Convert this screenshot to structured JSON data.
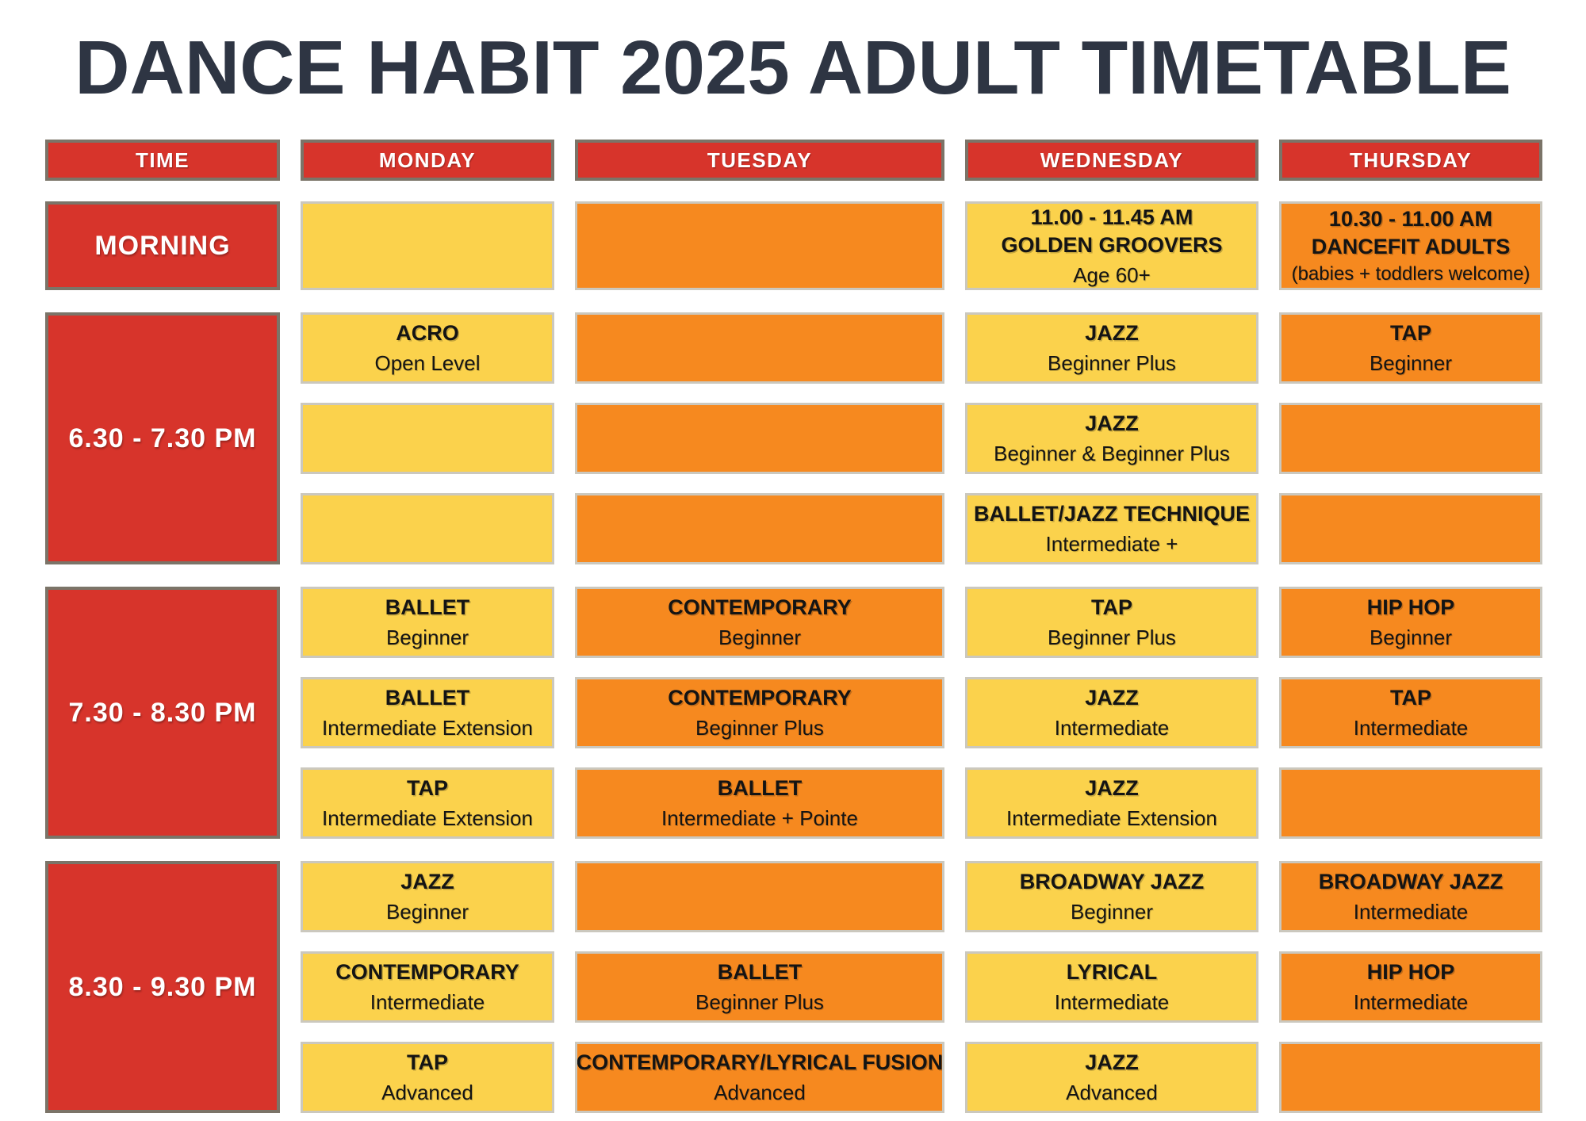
{
  "title": "DANCE HABIT 2025 ADULT TIMETABLE",
  "colors": {
    "red": "#D7342B",
    "red_border": "#7B7468",
    "yellow": "#FBD24C",
    "orange": "#F6891F",
    "cell_border": "#CBC8BE",
    "title_text": "#2E3543",
    "cell_text": "#141414",
    "header_text": "#FFFFFF"
  },
  "timetable": {
    "header": [
      "TIME",
      "MONDAY",
      "TUESDAY",
      "WEDNESDAY",
      "THURSDAY"
    ],
    "blocks": [
      {
        "time_label": "MORNING",
        "cells": [
          [
            {
              "bg": "yellow"
            },
            {
              "bg": "orange"
            },
            {
              "bg": "yellow",
              "heading_lines": [
                "11.00 - 11.45 AM",
                "GOLDEN GROOVERS"
              ],
              "sub": "Age 60+"
            },
            {
              "bg": "orange",
              "heading_lines": [
                "10.30 - 11.00 AM",
                "DANCEFIT ADULTS"
              ],
              "sub": "(babies + toddlers welcome)",
              "sub_small": true
            }
          ]
        ]
      },
      {
        "time_label": "6.30 - 7.30 PM",
        "cells": [
          [
            {
              "bg": "yellow",
              "heading_lines": [
                "ACRO"
              ],
              "sub": "Open Level"
            },
            {
              "bg": "orange"
            },
            {
              "bg": "yellow",
              "heading_lines": [
                "JAZZ"
              ],
              "sub": "Beginner Plus"
            },
            {
              "bg": "orange",
              "heading_lines": [
                "TAP"
              ],
              "sub": "Beginner"
            }
          ],
          [
            {
              "bg": "yellow"
            },
            {
              "bg": "orange"
            },
            {
              "bg": "yellow",
              "heading_lines": [
                "JAZZ"
              ],
              "sub": "Beginner & Beginner Plus"
            },
            {
              "bg": "orange"
            }
          ],
          [
            {
              "bg": "yellow"
            },
            {
              "bg": "orange"
            },
            {
              "bg": "yellow",
              "heading_lines": [
                "BALLET/JAZZ TECHNIQUE"
              ],
              "sub": "Intermediate +"
            },
            {
              "bg": "orange"
            }
          ]
        ]
      },
      {
        "time_label": "7.30 - 8.30 PM",
        "cells": [
          [
            {
              "bg": "yellow",
              "heading_lines": [
                "BALLET"
              ],
              "sub": "Beginner"
            },
            {
              "bg": "orange",
              "heading_lines": [
                "CONTEMPORARY"
              ],
              "sub": "Beginner"
            },
            {
              "bg": "yellow",
              "heading_lines": [
                "TAP"
              ],
              "sub": "Beginner Plus"
            },
            {
              "bg": "orange",
              "heading_lines": [
                "HIP HOP"
              ],
              "sub": "Beginner"
            }
          ],
          [
            {
              "bg": "yellow",
              "heading_lines": [
                "BALLET"
              ],
              "sub": "Intermediate Extension"
            },
            {
              "bg": "orange",
              "heading_lines": [
                "CONTEMPORARY"
              ],
              "sub": "Beginner Plus"
            },
            {
              "bg": "yellow",
              "heading_lines": [
                "JAZZ"
              ],
              "sub": "Intermediate"
            },
            {
              "bg": "orange",
              "heading_lines": [
                "TAP"
              ],
              "sub": "Intermediate"
            }
          ],
          [
            {
              "bg": "yellow",
              "heading_lines": [
                "TAP"
              ],
              "sub": "Intermediate Extension"
            },
            {
              "bg": "orange",
              "heading_lines": [
                "BALLET"
              ],
              "sub": "Intermediate + Pointe"
            },
            {
              "bg": "yellow",
              "heading_lines": [
                "JAZZ"
              ],
              "sub": "Intermediate Extension"
            },
            {
              "bg": "orange"
            }
          ]
        ]
      },
      {
        "time_label": "8.30 - 9.30 PM",
        "cells": [
          [
            {
              "bg": "yellow",
              "heading_lines": [
                "JAZZ"
              ],
              "sub": "Beginner"
            },
            {
              "bg": "orange"
            },
            {
              "bg": "yellow",
              "heading_lines": [
                "BROADWAY JAZZ"
              ],
              "sub": "Beginner"
            },
            {
              "bg": "orange",
              "heading_lines": [
                "BROADWAY JAZZ"
              ],
              "sub": "Intermediate"
            }
          ],
          [
            {
              "bg": "yellow",
              "heading_lines": [
                "CONTEMPORARY"
              ],
              "sub": "Intermediate"
            },
            {
              "bg": "orange",
              "heading_lines": [
                "BALLET"
              ],
              "sub": "Beginner Plus"
            },
            {
              "bg": "yellow",
              "heading_lines": [
                "LYRICAL"
              ],
              "sub": "Intermediate"
            },
            {
              "bg": "orange",
              "heading_lines": [
                "HIP HOP"
              ],
              "sub": "Intermediate"
            }
          ],
          [
            {
              "bg": "yellow",
              "heading_lines": [
                "TAP"
              ],
              "sub": "Advanced"
            },
            {
              "bg": "orange",
              "heading_lines": [
                "CONTEMPORARY/LYRICAL FUSION"
              ],
              "sub": "Advanced"
            },
            {
              "bg": "yellow",
              "heading_lines": [
                "JAZZ"
              ],
              "sub": "Advanced"
            },
            {
              "bg": "orange"
            }
          ]
        ]
      }
    ]
  }
}
